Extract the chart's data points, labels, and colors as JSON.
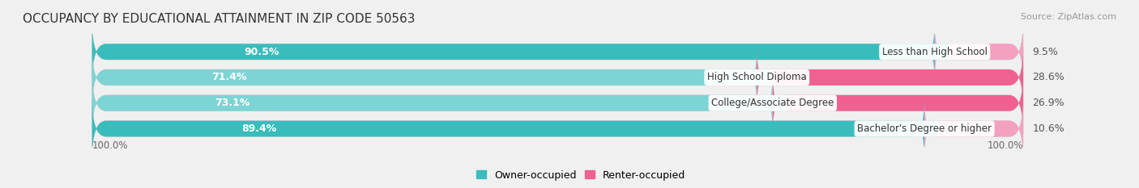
{
  "title": "OCCUPANCY BY EDUCATIONAL ATTAINMENT IN ZIP CODE 50563",
  "source": "Source: ZipAtlas.com",
  "categories": [
    "Less than High School",
    "High School Diploma",
    "College/Associate Degree",
    "Bachelor's Degree or higher"
  ],
  "owner_values": [
    90.5,
    71.4,
    73.1,
    89.4
  ],
  "renter_values": [
    9.5,
    28.6,
    26.9,
    10.6
  ],
  "owner_colors": [
    "#3abcbc",
    "#7dd4d4",
    "#7dd4d4",
    "#3abcbc"
  ],
  "renter_colors": [
    "#f4a0c0",
    "#f06090",
    "#f06090",
    "#f4a0c0"
  ],
  "bar_bg_color": "#e0e0e0",
  "bar_height": 0.62,
  "title_fontsize": 11,
  "source_fontsize": 8,
  "bar_label_fontsize": 9,
  "category_fontsize": 8.5,
  "legend_fontsize": 9,
  "axis_tick_fontsize": 8.5,
  "legend_owner_color": "#3abcbc",
  "legend_renter_color": "#f06090"
}
